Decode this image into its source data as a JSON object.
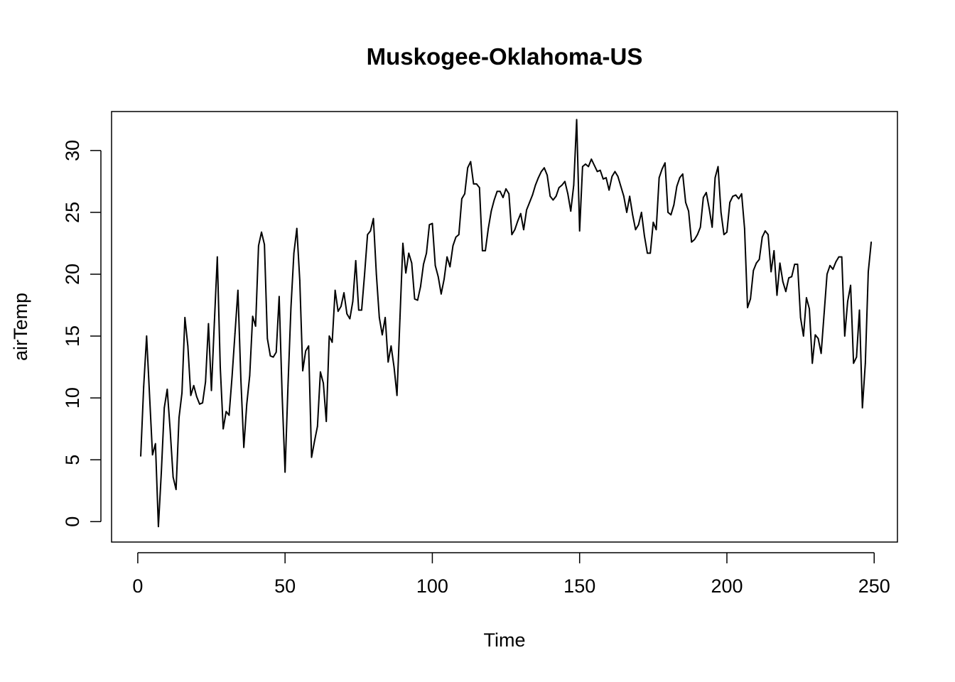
{
  "chart_data": {
    "type": "line",
    "title": "Muskogee-Oklahoma-US",
    "xlabel": "Time",
    "ylabel": "airTemp",
    "xlim": [
      -8.9,
      257.9
    ],
    "ylim": [
      -1.65,
      33.15
    ],
    "xticks": [
      0,
      50,
      100,
      150,
      200,
      250
    ],
    "yticks": [
      0,
      5,
      10,
      15,
      20,
      25,
      30
    ],
    "line_color": "#000000",
    "series": [
      {
        "name": "airTemp",
        "x_start": 1,
        "values": [
          5.3,
          10.9,
          15.0,
          10.2,
          5.4,
          6.3,
          -0.4,
          4.0,
          9.2,
          10.7,
          7.4,
          3.6,
          2.6,
          8.4,
          10.4,
          16.5,
          14.2,
          10.2,
          11.0,
          10.1,
          9.5,
          9.6,
          11.3,
          16.0,
          10.6,
          16.1,
          21.4,
          12.5,
          7.5,
          8.9,
          8.6,
          11.7,
          15.2,
          18.7,
          11.5,
          6.0,
          9.5,
          11.8,
          16.6,
          15.8,
          22.3,
          23.4,
          22.4,
          14.8,
          13.4,
          13.3,
          13.7,
          18.2,
          10.3,
          4.0,
          11.0,
          17.3,
          21.7,
          23.7,
          19.5,
          12.2,
          13.8,
          14.2,
          5.2,
          6.5,
          7.7,
          12.1,
          11.2,
          8.1,
          15.0,
          14.5,
          18.7,
          17.0,
          17.4,
          18.5,
          16.8,
          16.4,
          17.8,
          21.1,
          17.1,
          17.1,
          20.0,
          23.2,
          23.5,
          24.5,
          20.0,
          16.5,
          15.1,
          16.5,
          12.9,
          14.2,
          12.5,
          10.2,
          16.4,
          22.5,
          20.1,
          21.7,
          20.9,
          18.0,
          17.9,
          19.0,
          20.8,
          21.7,
          24.0,
          24.1,
          20.7,
          19.8,
          18.4,
          19.6,
          21.4,
          20.6,
          22.3,
          23.0,
          23.2,
          26.1,
          26.5,
          28.6,
          29.1,
          27.3,
          27.3,
          27.0,
          21.9,
          21.9,
          23.7,
          25.1,
          26.0,
          26.7,
          26.7,
          26.2,
          26.9,
          26.5,
          23.2,
          23.6,
          24.3,
          24.9,
          23.6,
          25.2,
          25.8,
          26.4,
          27.2,
          27.8,
          28.3,
          28.6,
          28.0,
          26.3,
          26.0,
          26.3,
          27.0,
          27.2,
          27.5,
          26.5,
          25.1,
          27.2,
          32.5,
          23.5,
          28.7,
          28.9,
          28.7,
          29.3,
          28.8,
          28.3,
          28.4,
          27.7,
          27.8,
          26.8,
          27.9,
          28.3,
          27.9,
          27.1,
          26.3,
          25.0,
          26.3,
          24.8,
          23.6,
          24.0,
          25.0,
          23.1,
          21.7,
          21.7,
          24.2,
          23.6,
          27.8,
          28.5,
          29.0,
          25.0,
          24.8,
          25.6,
          27.1,
          27.8,
          28.1,
          25.8,
          25.1,
          22.6,
          22.8,
          23.2,
          23.8,
          26.2,
          26.6,
          25.3,
          23.8,
          27.8,
          28.7,
          25.0,
          23.2,
          23.4,
          25.8,
          26.3,
          26.4,
          26.1,
          26.5,
          23.7,
          17.3,
          18.0,
          20.3,
          20.9,
          21.2,
          23.0,
          23.5,
          23.2,
          20.2,
          21.9,
          18.3,
          20.9,
          19.4,
          18.6,
          19.7,
          19.8,
          20.8,
          20.8,
          16.5,
          15.0,
          18.1,
          17.2,
          12.8,
          15.1,
          14.8,
          13.6,
          16.8,
          20.0,
          20.7,
          20.4,
          21.0,
          21.4,
          21.4,
          15.0,
          17.8,
          19.1,
          12.8,
          13.3,
          17.1,
          9.2,
          12.8,
          20.2,
          22.6
        ]
      }
    ]
  }
}
